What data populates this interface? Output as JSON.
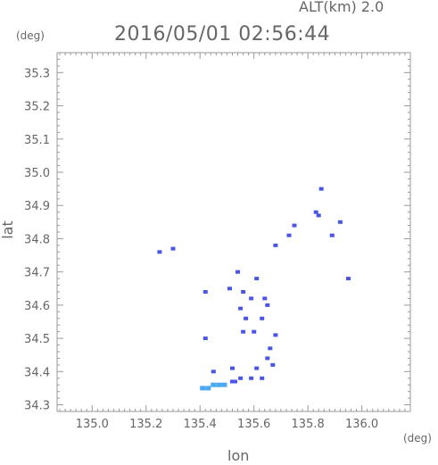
{
  "header": {
    "altitude_label": "ALT(km) 2.0",
    "datetime": "2016/05/01 02:56:44"
  },
  "axes": {
    "x_unit": "(deg)",
    "y_unit": "(deg)"
  },
  "chart_data": {
    "type": "scatter",
    "title": "2016/05/01 02:56:44",
    "xlabel": "lon",
    "ylabel": "lat",
    "xlim": [
      134.87,
      136.18
    ],
    "ylim": [
      34.28,
      35.36
    ],
    "xticks": [
      "135.0",
      "135.2",
      "135.4",
      "135.6",
      "135.8",
      "136.0"
    ],
    "yticks": [
      "34.3",
      "34.4",
      "34.5",
      "34.6",
      "34.7",
      "34.8",
      "34.9",
      "35.0",
      "35.1",
      "35.2",
      "35.3"
    ],
    "grid": false,
    "colors": {
      "echo": "#4a55e6",
      "echo_light": "#4aa8f0",
      "axis": "#999999"
    },
    "series": [
      {
        "points": [
          {
            "x": 135.85,
            "y": 34.95
          },
          {
            "x": 135.83,
            "y": 34.88
          },
          {
            "x": 135.84,
            "y": 34.87
          },
          {
            "x": 135.92,
            "y": 34.85
          },
          {
            "x": 135.75,
            "y": 34.84
          },
          {
            "x": 135.73,
            "y": 34.81
          },
          {
            "x": 135.89,
            "y": 34.81
          },
          {
            "x": 135.68,
            "y": 34.78
          },
          {
            "x": 135.95,
            "y": 34.68
          },
          {
            "x": 135.25,
            "y": 34.76
          },
          {
            "x": 135.3,
            "y": 34.77
          },
          {
            "x": 135.42,
            "y": 34.64
          },
          {
            "x": 135.54,
            "y": 34.7
          },
          {
            "x": 135.51,
            "y": 34.65
          },
          {
            "x": 135.56,
            "y": 34.64
          },
          {
            "x": 135.59,
            "y": 34.62
          },
          {
            "x": 135.61,
            "y": 34.68
          },
          {
            "x": 135.64,
            "y": 34.62
          },
          {
            "x": 135.55,
            "y": 34.59
          },
          {
            "x": 135.57,
            "y": 34.56
          },
          {
            "x": 135.63,
            "y": 34.56
          },
          {
            "x": 135.65,
            "y": 34.6
          },
          {
            "x": 135.56,
            "y": 34.52
          },
          {
            "x": 135.6,
            "y": 34.52
          },
          {
            "x": 135.42,
            "y": 34.5
          },
          {
            "x": 135.68,
            "y": 34.51
          },
          {
            "x": 135.66,
            "y": 34.47
          },
          {
            "x": 135.65,
            "y": 34.44
          },
          {
            "x": 135.67,
            "y": 34.42
          },
          {
            "x": 135.45,
            "y": 34.4
          },
          {
            "x": 135.52,
            "y": 34.41
          },
          {
            "x": 135.61,
            "y": 34.41
          },
          {
            "x": 135.55,
            "y": 34.38
          },
          {
            "x": 135.59,
            "y": 34.38
          },
          {
            "x": 135.63,
            "y": 34.38
          },
          {
            "x": 135.52,
            "y": 34.37
          },
          {
            "x": 135.41,
            "y": 34.35
          },
          {
            "x": 135.43,
            "y": 34.35
          },
          {
            "x": 135.45,
            "y": 34.36
          },
          {
            "x": 135.47,
            "y": 34.36
          },
          {
            "x": 135.49,
            "y": 34.36
          },
          {
            "x": 135.53,
            "y": 34.37
          }
        ]
      }
    ]
  }
}
